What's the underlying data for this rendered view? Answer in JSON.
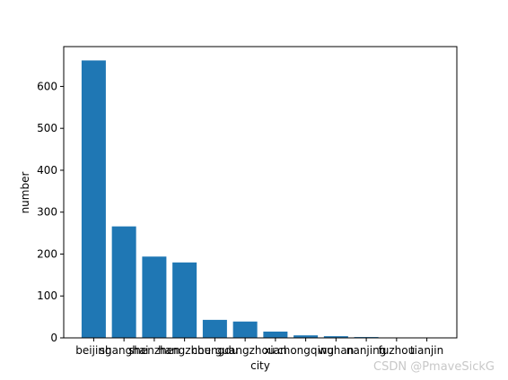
{
  "chart_data": {
    "type": "bar",
    "xlabel": "city",
    "ylabel": "number",
    "categories": [
      "beijing",
      "shanghai",
      "shenzhen",
      "hangzhou",
      "chengdu",
      "guangzhou",
      "xian",
      "chongqing",
      "wuhan",
      "nanjing",
      "fuzhou",
      "tianjin"
    ],
    "values": [
      662,
      266,
      194,
      180,
      43,
      39,
      15,
      6,
      4,
      2,
      1,
      1
    ],
    "color": "#1f77b4",
    "ylim": [
      0,
      695
    ],
    "yticks": [
      0,
      100,
      200,
      300,
      400,
      500,
      600
    ]
  },
  "watermark": "CSDN @PmaveSickG"
}
